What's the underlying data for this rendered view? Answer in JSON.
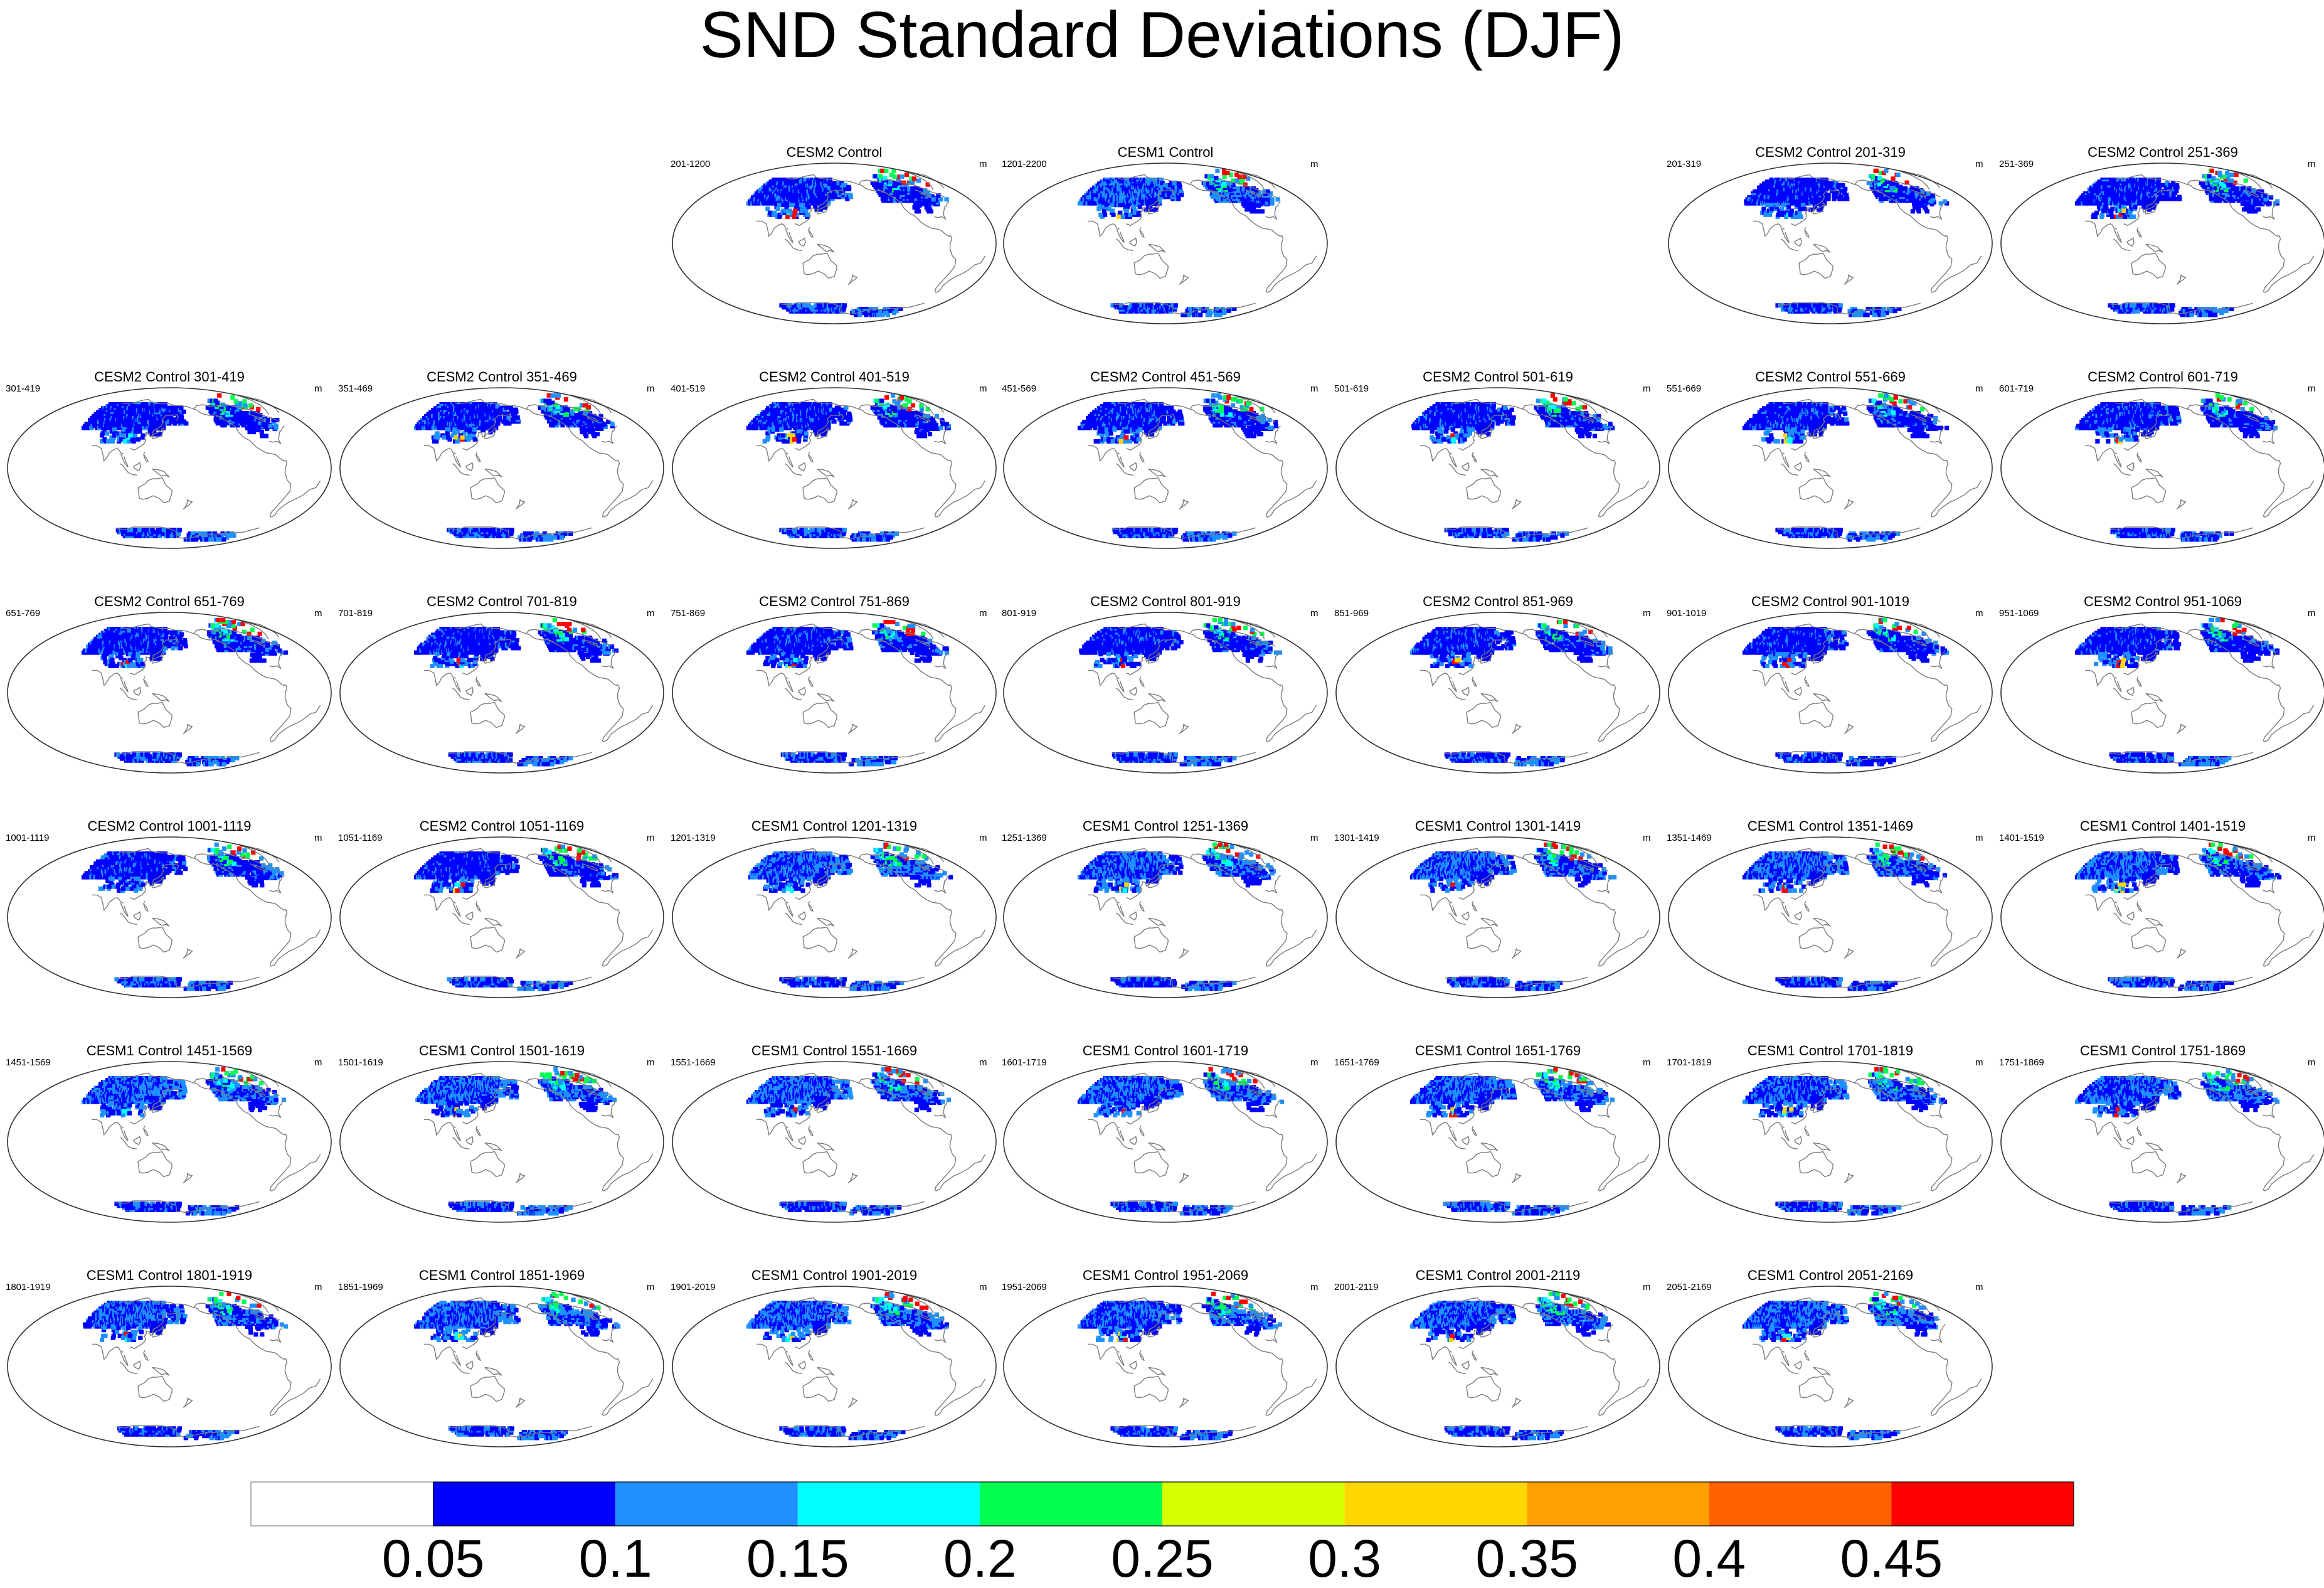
{
  "title": "SND Standard Deviations (DJF)",
  "units_label": "m",
  "colors": {
    "coastline": "#7a7a7a",
    "frame": "#303030",
    "snow_dark_blue": "#0000ff",
    "snow_light_blue": "#1e90ff",
    "snow_cyan": "#00ffff",
    "snow_green": "#00ff50",
    "snow_yellow": "#ffd700",
    "snow_red": "#ff0000"
  },
  "panels": [
    {
      "title": "CESM2 Control",
      "left": "201-1200",
      "model": "CESM2"
    },
    {
      "title": "CESM1 Control",
      "left": "1201-2200",
      "model": "CESM1"
    },
    {
      "title": "CESM2 Control 201-319",
      "left": "201-319",
      "model": "CESM2"
    },
    {
      "title": "CESM2 Control 251-369",
      "left": "251-369",
      "model": "CESM2"
    },
    {
      "title": "CESM2 Control 301-419",
      "left": "301-419",
      "model": "CESM2"
    },
    {
      "title": "CESM2 Control 351-469",
      "left": "351-469",
      "model": "CESM2"
    },
    {
      "title": "CESM2 Control 401-519",
      "left": "401-519",
      "model": "CESM2"
    },
    {
      "title": "CESM2 Control 451-569",
      "left": "451-569",
      "model": "CESM2"
    },
    {
      "title": "CESM2 Control 501-619",
      "left": "501-619",
      "model": "CESM2"
    },
    {
      "title": "CESM2 Control 551-669",
      "left": "551-669",
      "model": "CESM2"
    },
    {
      "title": "CESM2 Control 601-719",
      "left": "601-719",
      "model": "CESM2"
    },
    {
      "title": "CESM2 Control 651-769",
      "left": "651-769",
      "model": "CESM2"
    },
    {
      "title": "CESM2 Control 701-819",
      "left": "701-819",
      "model": "CESM2"
    },
    {
      "title": "CESM2 Control 751-869",
      "left": "751-869",
      "model": "CESM2"
    },
    {
      "title": "CESM2 Control 801-919",
      "left": "801-919",
      "model": "CESM2"
    },
    {
      "title": "CESM2 Control 851-969",
      "left": "851-969",
      "model": "CESM2"
    },
    {
      "title": "CESM2 Control 901-1019",
      "left": "901-1019",
      "model": "CESM2"
    },
    {
      "title": "CESM2 Control 951-1069",
      "left": "951-1069",
      "model": "CESM2"
    },
    {
      "title": "CESM2 Control 1001-1119",
      "left": "1001-1119",
      "model": "CESM2"
    },
    {
      "title": "CESM2 Control 1051-1169",
      "left": "1051-1169",
      "model": "CESM2"
    },
    {
      "title": "CESM1 Control 1201-1319",
      "left": "1201-1319",
      "model": "CESM1"
    },
    {
      "title": "CESM1 Control 1251-1369",
      "left": "1251-1369",
      "model": "CESM1"
    },
    {
      "title": "CESM1 Control 1301-1419",
      "left": "1301-1419",
      "model": "CESM1"
    },
    {
      "title": "CESM1 Control 1351-1469",
      "left": "1351-1469",
      "model": "CESM1"
    },
    {
      "title": "CESM1 Control 1401-1519",
      "left": "1401-1519",
      "model": "CESM1"
    },
    {
      "title": "CESM1 Control 1451-1569",
      "left": "1451-1569",
      "model": "CESM1"
    },
    {
      "title": "CESM1 Control 1501-1619",
      "left": "1501-1619",
      "model": "CESM1"
    },
    {
      "title": "CESM1 Control 1551-1669",
      "left": "1551-1669",
      "model": "CESM1"
    },
    {
      "title": "CESM1 Control 1601-1719",
      "left": "1601-1719",
      "model": "CESM1"
    },
    {
      "title": "CESM1 Control 1651-1769",
      "left": "1651-1769",
      "model": "CESM1"
    },
    {
      "title": "CESM1 Control 1701-1819",
      "left": "1701-1819",
      "model": "CESM1"
    },
    {
      "title": "CESM1 Control 1751-1869",
      "left": "1751-1869",
      "model": "CESM1"
    },
    {
      "title": "CESM1 Control 1801-1919",
      "left": "1801-1919",
      "model": "CESM1"
    },
    {
      "title": "CESM1 Control 1851-1969",
      "left": "1851-1969",
      "model": "CESM1"
    },
    {
      "title": "CESM1 Control 1901-2019",
      "left": "1901-2019",
      "model": "CESM1"
    },
    {
      "title": "CESM1 Control 1951-2069",
      "left": "1951-2069",
      "model": "CESM1"
    },
    {
      "title": "CESM1 Control 2001-2119",
      "left": "2001-2119",
      "model": "CESM1"
    },
    {
      "title": "CESM1 Control 2051-2169",
      "left": "2051-2169",
      "model": "CESM1"
    }
  ],
  "chart_data": {
    "type": "heatmap",
    "title": "SND Standard Deviations (DJF)",
    "variable": "SND",
    "season": "DJF",
    "units": "m",
    "projection": "global map, Pacific-centered",
    "colorbar": {
      "orientation": "horizontal",
      "placement": "bottom",
      "tick_labels": [
        "0.05",
        "0.1",
        "0.15",
        "0.2",
        "0.25",
        "0.3",
        "0.35",
        "0.4",
        "0.45"
      ],
      "levels": [
        0.05,
        0.1,
        0.15,
        0.2,
        0.25,
        0.3,
        0.35,
        0.4,
        0.45
      ],
      "colors": [
        "#ffffff",
        "#0000ff",
        "#1e90ff",
        "#00ffff",
        "#00ff50",
        "#d8ff00",
        "#ffd700",
        "#ffa000",
        "#ff6000",
        "#ff0000"
      ]
    }
  }
}
